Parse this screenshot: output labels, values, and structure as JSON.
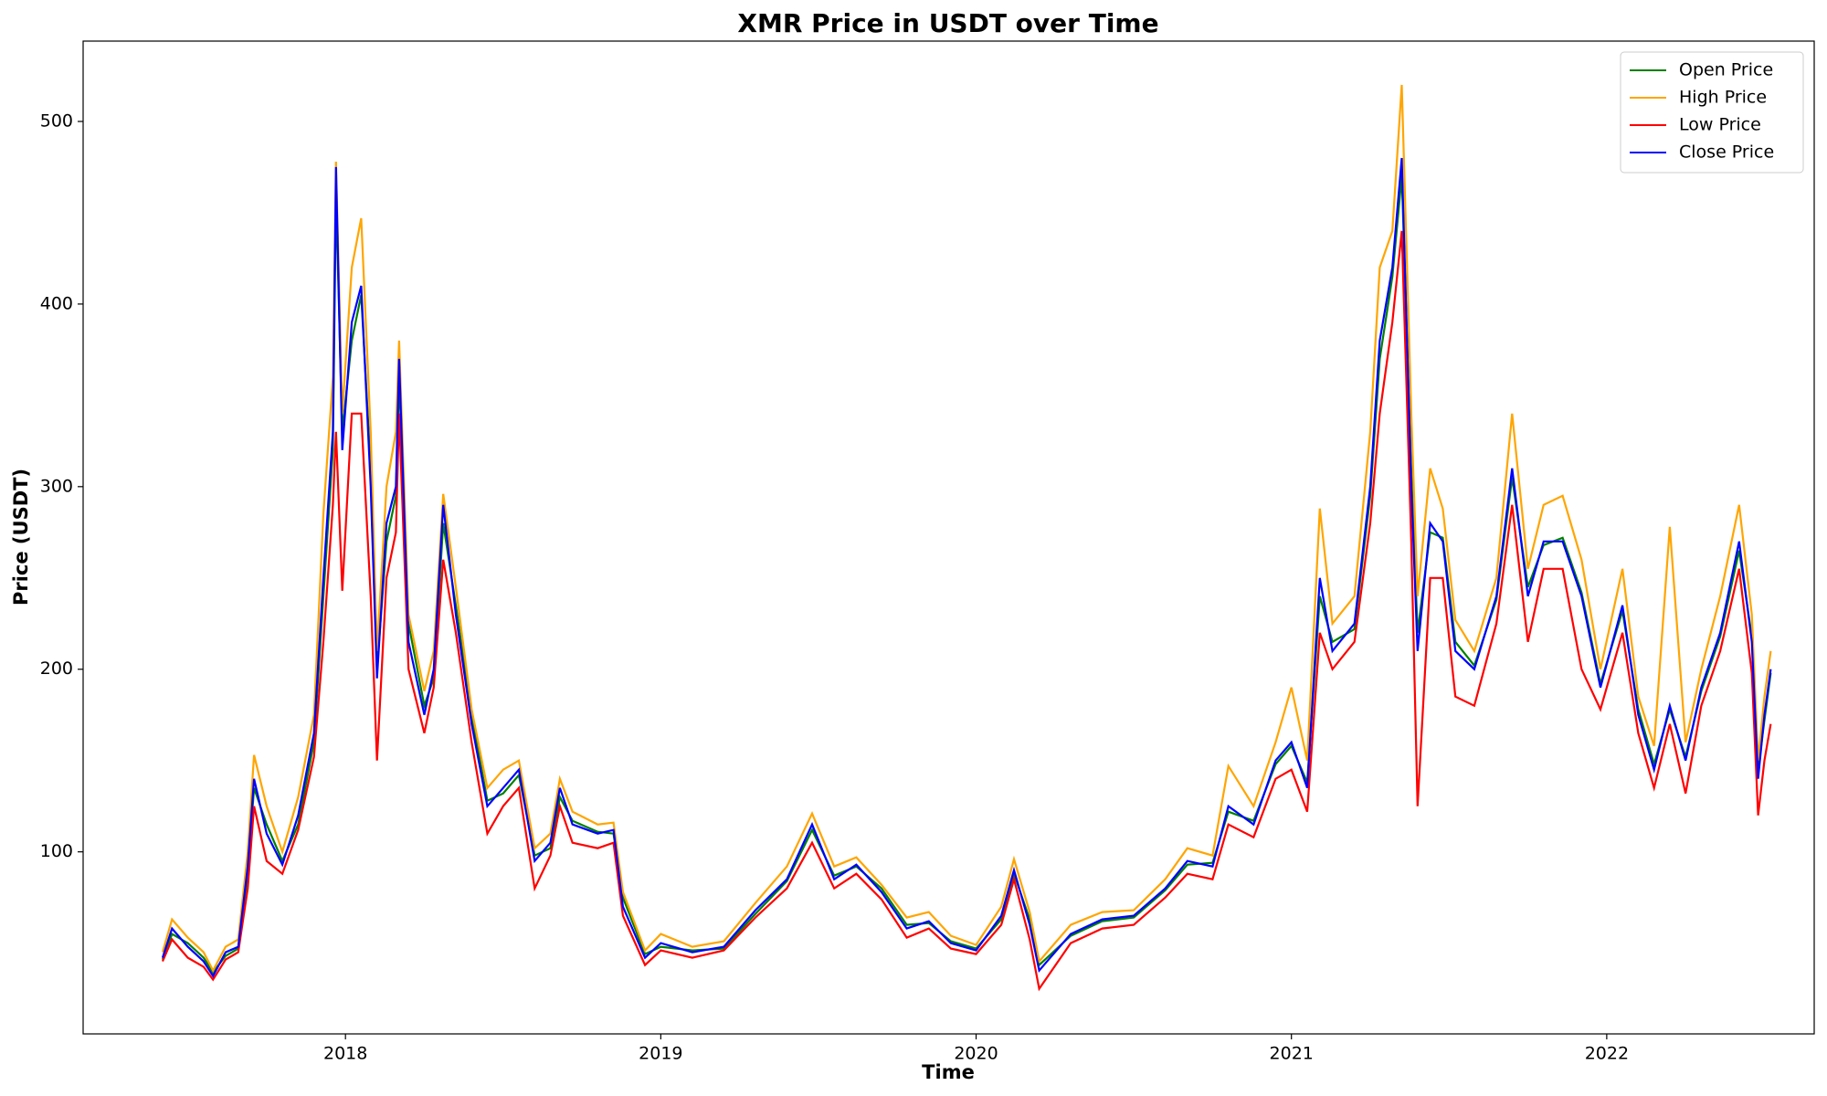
{
  "chart_data": {
    "type": "line",
    "title": "XMR Price in USDT over Time",
    "xlabel": "Time",
    "ylabel": "Price (USDT)",
    "x": [
      2017.42,
      2017.45,
      2017.5,
      2017.55,
      2017.58,
      2017.62,
      2017.66,
      2017.69,
      2017.71,
      2017.75,
      2017.8,
      2017.85,
      2017.9,
      2017.93,
      2017.96,
      2017.97,
      2017.99,
      2018.02,
      2018.05,
      2018.08,
      2018.1,
      2018.13,
      2018.16,
      2018.17,
      2018.2,
      2018.25,
      2018.28,
      2018.31,
      2018.35,
      2018.4,
      2018.45,
      2018.5,
      2018.55,
      2018.6,
      2018.65,
      2018.68,
      2018.72,
      2018.8,
      2018.85,
      2018.88,
      2018.95,
      2019.0,
      2019.1,
      2019.2,
      2019.3,
      2019.4,
      2019.48,
      2019.55,
      2019.62,
      2019.7,
      2019.78,
      2019.85,
      2019.92,
      2020.0,
      2020.08,
      2020.12,
      2020.17,
      2020.2,
      2020.3,
      2020.4,
      2020.5,
      2020.6,
      2020.67,
      2020.75,
      2020.8,
      2020.88,
      2020.95,
      2021.0,
      2021.05,
      2021.09,
      2021.13,
      2021.2,
      2021.25,
      2021.28,
      2021.32,
      2021.35,
      2021.38,
      2021.4,
      2021.44,
      2021.48,
      2021.52,
      2021.58,
      2021.65,
      2021.7,
      2021.75,
      2021.8,
      2021.86,
      2021.92,
      2021.98,
      2022.05,
      2022.1,
      2022.15,
      2022.2,
      2022.25,
      2022.3,
      2022.36,
      2022.42,
      2022.46,
      2022.48,
      2022.5,
      2022.52
    ],
    "series": [
      {
        "name": "Open Price",
        "color": "green",
        "values": [
          41,
          55,
          50,
          42,
          34,
          43,
          47,
          88,
          135,
          115,
          95,
          115,
          160,
          240,
          320,
          460,
          330,
          380,
          405,
          310,
          200,
          270,
          295,
          360,
          225,
          180,
          195,
          280,
          235,
          175,
          128,
          132,
          142,
          98,
          102,
          130,
          117,
          111,
          110,
          75,
          44,
          48,
          46,
          47,
          66,
          84,
          112,
          87,
          92,
          80,
          60,
          61,
          51,
          47,
          63,
          88,
          63,
          38,
          54,
          62,
          64,
          79,
          93,
          94,
          122,
          117,
          148,
          158,
          138,
          240,
          215,
          222,
          295,
          370,
          415,
          470,
          310,
          220,
          275,
          272,
          215,
          202,
          238,
          305,
          245,
          268,
          272,
          242,
          192,
          232,
          178,
          148,
          178,
          152,
          188,
          218,
          265,
          218,
          145,
          172,
          198
        ]
      },
      {
        "name": "High Price",
        "color": "orange",
        "values": [
          45,
          63,
          53,
          45,
          35,
          48,
          52,
          100,
          153,
          125,
          100,
          130,
          175,
          285,
          360,
          478,
          340,
          420,
          447,
          330,
          210,
          300,
          330,
          380,
          230,
          188,
          210,
          296,
          245,
          178,
          135,
          145,
          150,
          102,
          110,
          140,
          122,
          115,
          116,
          78,
          46,
          55,
          48,
          51,
          72,
          92,
          121,
          92,
          97,
          82,
          64,
          67,
          54,
          49,
          70,
          96,
          67,
          40,
          60,
          67,
          68,
          85,
          102,
          98,
          147,
          125,
          160,
          190,
          150,
          288,
          225,
          240,
          330,
          420,
          440,
          520,
          340,
          240,
          310,
          288,
          227,
          210,
          250,
          340,
          255,
          290,
          295,
          260,
          200,
          255,
          185,
          158,
          278,
          160,
          200,
          240,
          290,
          230,
          150,
          185,
          210
        ]
      },
      {
        "name": "Low Price",
        "color": "red",
        "values": [
          40,
          52,
          42,
          37,
          30,
          41,
          45,
          80,
          125,
          95,
          88,
          112,
          152,
          215,
          290,
          330,
          243,
          340,
          340,
          240,
          150,
          250,
          275,
          340,
          200,
          165,
          190,
          260,
          220,
          160,
          110,
          125,
          135,
          80,
          98,
          125,
          105,
          102,
          105,
          65,
          38,
          46,
          42,
          46,
          64,
          80,
          105,
          80,
          88,
          74,
          53,
          58,
          47,
          44,
          60,
          85,
          52,
          25,
          50,
          58,
          60,
          75,
          88,
          85,
          115,
          108,
          140,
          145,
          122,
          220,
          200,
          215,
          280,
          340,
          390,
          440,
          270,
          125,
          250,
          250,
          185,
          180,
          225,
          290,
          215,
          255,
          255,
          200,
          178,
          220,
          165,
          135,
          170,
          132,
          180,
          210,
          255,
          198,
          120,
          150,
          170
        ]
      },
      {
        "name": "Close Price",
        "color": "blue",
        "values": [
          42,
          58,
          48,
          40,
          32,
          45,
          48,
          92,
          140,
          110,
          93,
          120,
          165,
          250,
          330,
          475,
          320,
          390,
          410,
          300,
          195,
          280,
          300,
          370,
          215,
          175,
          200,
          290,
          230,
          170,
          125,
          135,
          145,
          95,
          105,
          135,
          115,
          110,
          112,
          70,
          42,
          50,
          45,
          48,
          68,
          85,
          115,
          85,
          93,
          78,
          58,
          62,
          50,
          46,
          65,
          90,
          60,
          35,
          55,
          63,
          65,
          80,
          95,
          92,
          125,
          115,
          150,
          160,
          135,
          250,
          210,
          225,
          300,
          380,
          420,
          480,
          300,
          210,
          280,
          270,
          210,
          200,
          240,
          310,
          240,
          270,
          270,
          240,
          190,
          235,
          175,
          145,
          180,
          150,
          190,
          220,
          270,
          215,
          140,
          175,
          200
        ]
      }
    ],
    "xlim": [
      2017.168,
      2022.658
    ],
    "xticks": [
      2018,
      2019,
      2020,
      2021,
      2022
    ],
    "ylim": [
      0.3,
      544
    ],
    "yticks": [
      100,
      200,
      300,
      400,
      500
    ],
    "grid": false,
    "legend": "upper right"
  }
}
